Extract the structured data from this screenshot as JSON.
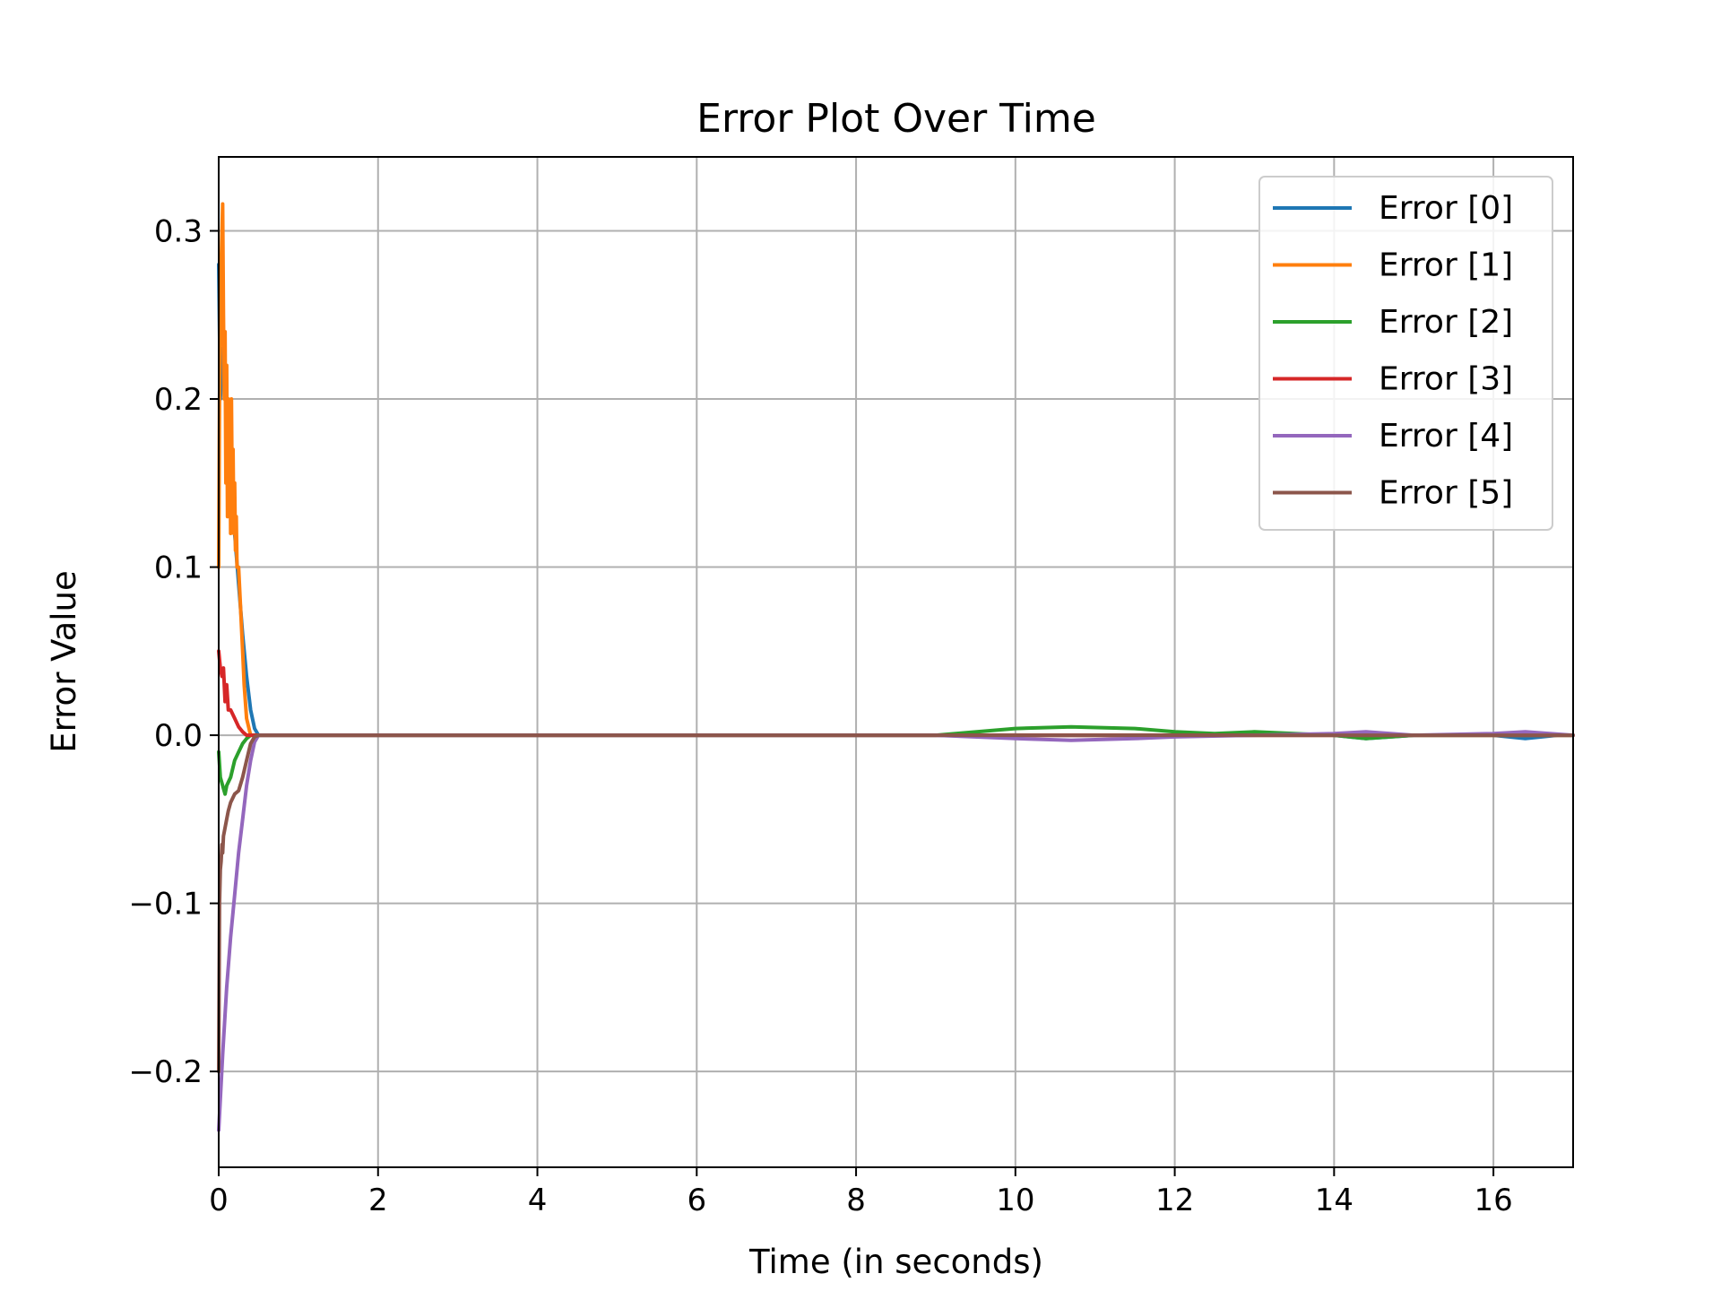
{
  "chart_data": {
    "type": "line",
    "title": "Error Plot Over Time",
    "xlabel": "Time (in seconds)",
    "ylabel": "Error Value",
    "xlim": [
      0,
      17
    ],
    "ylim": [
      -0.257,
      0.344
    ],
    "xticks": [
      0,
      2,
      4,
      6,
      8,
      10,
      12,
      14,
      16
    ],
    "xtick_labels": [
      "0",
      "2",
      "4",
      "6",
      "8",
      "10",
      "12",
      "14",
      "16"
    ],
    "yticks": [
      -0.2,
      -0.1,
      0.0,
      0.1,
      0.2,
      0.3
    ],
    "ytick_labels": [
      "−0.2",
      "−0.1",
      "0.0",
      "0.1",
      "0.2",
      "0.3"
    ],
    "grid": true,
    "legend_position": "top-right",
    "series": [
      {
        "name": "Error [0]",
        "color": "#1f77b4",
        "x": [
          0,
          0.02,
          0.05,
          0.1,
          0.15,
          0.2,
          0.25,
          0.3,
          0.35,
          0.4,
          0.45,
          0.5,
          0.6,
          1,
          2,
          4,
          6,
          8,
          10,
          12,
          13,
          14,
          14.4,
          15,
          16,
          16.4,
          16.8,
          17
        ],
        "y": [
          0.28,
          0.2,
          0.23,
          0.19,
          0.15,
          0.12,
          0.09,
          0.06,
          0.035,
          0.015,
          0.004,
          0.0,
          0.0,
          0.0,
          0.0,
          0.0,
          0.0,
          0.0,
          0.0,
          0.0,
          0.0,
          0.0,
          -0.002,
          0.0,
          0.0,
          -0.002,
          0.0,
          0.0
        ]
      },
      {
        "name": "Error [1]",
        "color": "#ff7f0e",
        "x": [
          0,
          0.01,
          0.03,
          0.05,
          0.06,
          0.07,
          0.08,
          0.09,
          0.1,
          0.11,
          0.12,
          0.13,
          0.14,
          0.15,
          0.16,
          0.17,
          0.18,
          0.19,
          0.2,
          0.21,
          0.22,
          0.23,
          0.25,
          0.27,
          0.3,
          0.32,
          0.35,
          0.4,
          0.5,
          1,
          4,
          8,
          12,
          17
        ],
        "y": [
          0.1,
          0.2,
          0.28,
          0.316,
          0.25,
          0.2,
          0.24,
          0.15,
          0.22,
          0.13,
          0.2,
          0.16,
          0.19,
          0.12,
          0.2,
          0.14,
          0.17,
          0.12,
          0.15,
          0.11,
          0.13,
          0.1,
          0.1,
          0.08,
          0.05,
          0.03,
          0.01,
          0.0,
          0.0,
          0.0,
          0.0,
          0.0,
          0.0,
          0.0
        ]
      },
      {
        "name": "Error [2]",
        "color": "#2ca02c",
        "x": [
          0,
          0.02,
          0.05,
          0.08,
          0.1,
          0.15,
          0.2,
          0.25,
          0.3,
          0.35,
          0.4,
          0.5,
          1,
          4,
          8,
          9,
          10,
          10.7,
          11.5,
          12,
          12.5,
          13,
          13.5,
          14,
          14.4,
          15,
          16,
          17
        ],
        "y": [
          -0.01,
          -0.025,
          -0.03,
          -0.035,
          -0.03,
          -0.025,
          -0.015,
          -0.01,
          -0.005,
          -0.002,
          0.0,
          0.0,
          0.0,
          0.0,
          0.0,
          0.0,
          0.004,
          0.005,
          0.004,
          0.002,
          0.001,
          0.002,
          0.001,
          0.0,
          -0.002,
          0.0,
          0.0,
          0.0
        ]
      },
      {
        "name": "Error [3]",
        "color": "#d62728",
        "x": [
          0,
          0.02,
          0.04,
          0.06,
          0.08,
          0.1,
          0.12,
          0.15,
          0.2,
          0.25,
          0.3,
          0.35,
          0.4,
          1,
          2,
          4,
          8,
          12,
          17
        ],
        "y": [
          0.05,
          0.04,
          0.035,
          0.04,
          0.02,
          0.03,
          0.015,
          0.015,
          0.01,
          0.005,
          0.002,
          0.0,
          0.0,
          0.0,
          0.0,
          0.0,
          0.0,
          0.0,
          0.0
        ]
      },
      {
        "name": "Error [4]",
        "color": "#9467bd",
        "x": [
          0,
          0.05,
          0.1,
          0.15,
          0.2,
          0.25,
          0.3,
          0.35,
          0.4,
          0.45,
          0.5,
          1,
          4,
          8,
          9,
          10,
          10.7,
          11.5,
          12,
          13,
          14,
          14.4,
          15,
          16,
          16.4,
          17
        ],
        "y": [
          -0.235,
          -0.19,
          -0.15,
          -0.12,
          -0.095,
          -0.07,
          -0.05,
          -0.03,
          -0.015,
          -0.004,
          0.0,
          0.0,
          0.0,
          0.0,
          0.0,
          -0.002,
          -0.003,
          -0.002,
          -0.001,
          0.0,
          0.001,
          0.002,
          0.0,
          0.001,
          0.002,
          0.0
        ]
      },
      {
        "name": "Error [5]",
        "color": "#8c564b",
        "x": [
          0,
          0.01,
          0.02,
          0.03,
          0.04,
          0.05,
          0.06,
          0.08,
          0.1,
          0.12,
          0.15,
          0.2,
          0.25,
          0.3,
          0.35,
          0.4,
          0.45,
          0.5,
          1,
          4,
          8,
          12,
          17
        ],
        "y": [
          -0.2,
          -0.1,
          -0.08,
          -0.075,
          -0.065,
          -0.07,
          -0.06,
          -0.055,
          -0.05,
          -0.045,
          -0.04,
          -0.035,
          -0.033,
          -0.025,
          -0.015,
          -0.005,
          -0.001,
          0.0,
          0.0,
          0.0,
          0.0,
          0.0,
          0.0
        ]
      }
    ]
  }
}
